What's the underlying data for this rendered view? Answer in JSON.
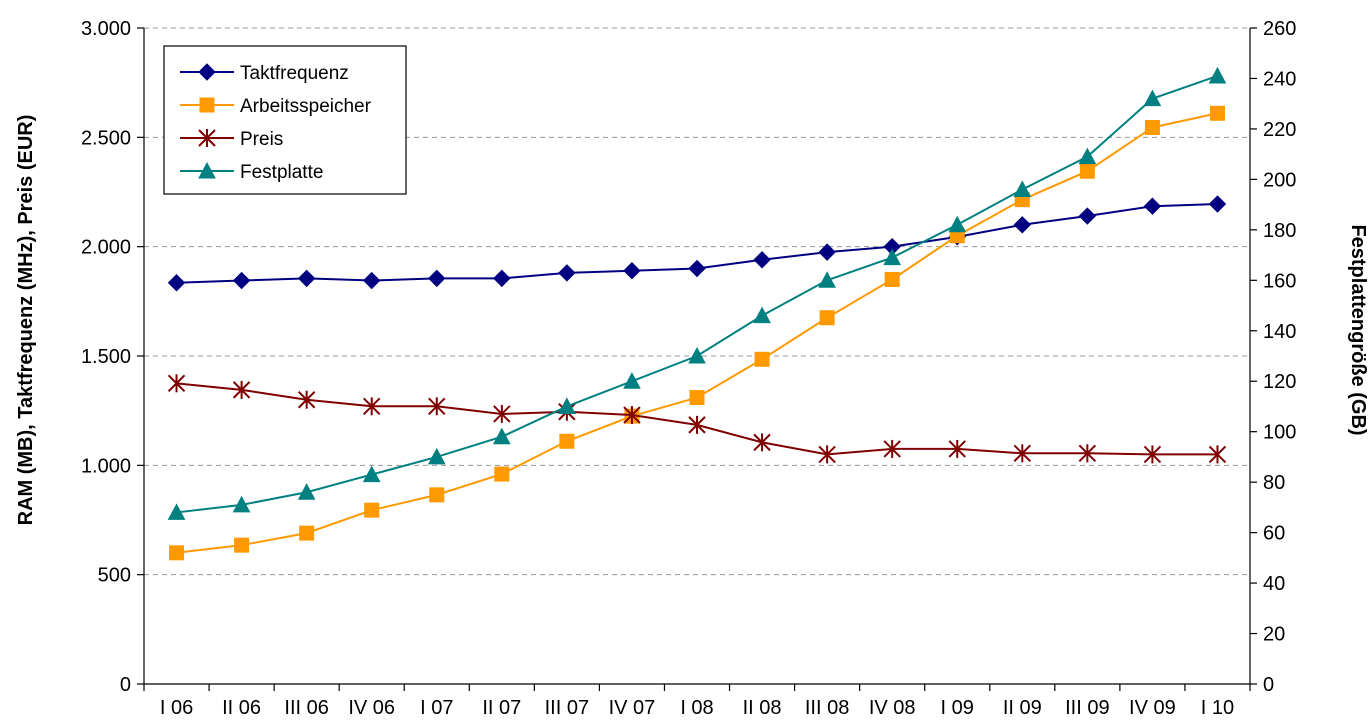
{
  "chart_data": {
    "type": "line",
    "title": "",
    "categories": [
      "I 06",
      "II 06",
      "III 06",
      "IV 06",
      "I 07",
      "II 07",
      "III 07",
      "IV 07",
      "I 08",
      "II 08",
      "III 08",
      "IV 08",
      "I 09",
      "II 09",
      "III 09",
      "IV 09",
      "I 10"
    ],
    "y_left": {
      "label": "RAM (MB), Taktfrequenz (MHz), Preis (EUR)",
      "ylim": [
        0,
        3000
      ],
      "ticks": [
        0,
        500,
        1000,
        1500,
        2000,
        2500,
        3000
      ],
      "tick_labels": [
        "0",
        "500",
        "1.000",
        "1.500",
        "2.000",
        "2.500",
        "3.000"
      ]
    },
    "y_right": {
      "label": "Festplattengröße (GB)",
      "ylim": [
        0,
        260
      ],
      "ticks": [
        0,
        20,
        40,
        60,
        80,
        100,
        120,
        140,
        160,
        180,
        200,
        220,
        240,
        260
      ],
      "tick_labels": [
        "0",
        "20",
        "40",
        "60",
        "80",
        "100",
        "120",
        "140",
        "160",
        "180",
        "200",
        "220",
        "240",
        "260"
      ]
    },
    "grid": "horizontal dashed",
    "legend": "top-left",
    "series": [
      {
        "name": "Taktfrequenz",
        "axis": "left",
        "color": "#000080",
        "marker": "diamond",
        "values": [
          1835,
          1845,
          1855,
          1845,
          1855,
          1855,
          1880,
          1890,
          1900,
          1940,
          1975,
          2000,
          2045,
          2100,
          2140,
          2185,
          2195
        ]
      },
      {
        "name": "Arbeitsspeicher",
        "axis": "left",
        "color": "#FF9900",
        "marker": "square",
        "values": [
          600,
          635,
          690,
          795,
          865,
          960,
          1110,
          1225,
          1310,
          1485,
          1675,
          1850,
          2050,
          2215,
          2345,
          2545,
          2610
        ]
      },
      {
        "name": "Preis",
        "axis": "left",
        "color": "#800000",
        "marker": "asterisk",
        "values": [
          1375,
          1345,
          1300,
          1270,
          1270,
          1235,
          1245,
          1230,
          1185,
          1105,
          1050,
          1075,
          1075,
          1055,
          1055,
          1050,
          1050
        ]
      },
      {
        "name": "Festplatte",
        "axis": "right",
        "color": "#008080",
        "marker": "triangle",
        "values": [
          68,
          71,
          76,
          83,
          90,
          98,
          110,
          120,
          130,
          146,
          160,
          169,
          182,
          196,
          209,
          232,
          241
        ]
      }
    ]
  }
}
